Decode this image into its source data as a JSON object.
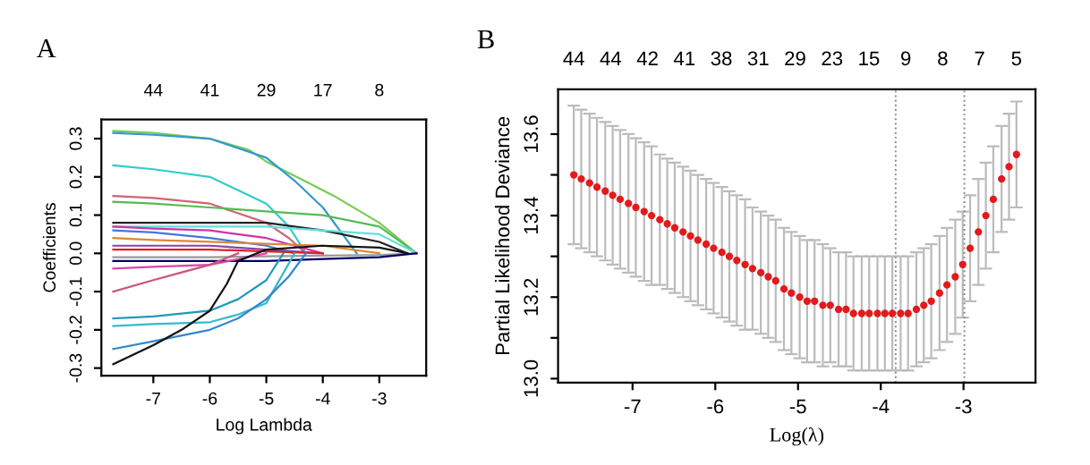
{
  "chart_data": [
    {
      "type": "line",
      "title": "A",
      "xlabel": "Log Lambda",
      "ylabel": "Coefficients",
      "xlim": [
        -7.92,
        -2.17
      ],
      "ylim": [
        -0.32,
        0.35
      ],
      "xticks": [
        -7,
        -6,
        -5,
        -4,
        -3
      ],
      "yticks": [
        -0.3,
        -0.2,
        -0.1,
        {
          "value": 0,
          "label": "0.0"
        },
        0.1,
        0.2,
        0.3
      ],
      "annotations": [
        "44",
        "41",
        "29",
        "17",
        "8"
      ],
      "grid": false,
      "legend": false,
      "marker": "none",
      "line_style": "solid",
      "series": [
        {
          "color": "#77cc55",
          "x": [
            -7.71,
            -7,
            -6,
            -5.3,
            -5,
            -4.2,
            -3.8,
            -3,
            -2.34
          ],
          "values": [
            0.32,
            0.315,
            0.3,
            0.27,
            0.24,
            0.18,
            0.15,
            0.08,
            0.0
          ]
        },
        {
          "color": "#3399cc",
          "x": [
            -7.71,
            -7,
            -6,
            -5,
            -4.5,
            -4,
            -3.4
          ],
          "values": [
            0.315,
            0.31,
            0.3,
            0.25,
            0.19,
            0.12,
            0.0
          ]
        },
        {
          "color": "#33cccc",
          "x": [
            -7.71,
            -7,
            -6,
            -5,
            -4.6,
            -4.3
          ],
          "values": [
            0.23,
            0.22,
            0.2,
            0.13,
            0.07,
            0.0
          ]
        },
        {
          "color": "#cc6677",
          "x": [
            -7.71,
            -7,
            -6,
            -5,
            -4.6,
            -4.3
          ],
          "values": [
            0.15,
            0.145,
            0.13,
            0.08,
            0.04,
            0.0
          ]
        },
        {
          "color": "#55bb55",
          "x": [
            -7.71,
            -7,
            -6,
            -5,
            -4,
            -3,
            -2.34
          ],
          "values": [
            0.135,
            0.13,
            0.12,
            0.11,
            0.1,
            0.07,
            0.0
          ]
        },
        {
          "color": "#222222",
          "x": [
            -7.71,
            -7,
            -6,
            -5,
            -4,
            -3,
            -2.5
          ],
          "values": [
            0.08,
            0.08,
            0.08,
            0.08,
            0.06,
            0.03,
            0.0
          ]
        },
        {
          "color": "#66dddd",
          "x": [
            -7.71,
            -7,
            -6,
            -5,
            -4,
            -3,
            -2.34
          ],
          "values": [
            0.07,
            0.07,
            0.07,
            0.07,
            0.06,
            0.05,
            0.0
          ]
        },
        {
          "color": "#cc33aa",
          "x": [
            -7.71,
            -7,
            -6,
            -5,
            -4.5,
            -4
          ],
          "values": [
            0.07,
            0.065,
            0.06,
            0.04,
            0.02,
            0.0
          ]
        },
        {
          "color": "#4477dd",
          "x": [
            -7.71,
            -7,
            -6,
            -5,
            -4.5
          ],
          "values": [
            0.06,
            0.055,
            0.04,
            0.02,
            0.0
          ]
        },
        {
          "color": "#dd8833",
          "x": [
            -7.71,
            -7,
            -6,
            -5,
            -4,
            -3
          ],
          "values": [
            0.04,
            0.035,
            0.03,
            0.025,
            0.02,
            0.0
          ]
        },
        {
          "color": "#8844aa",
          "x": [
            -7.71,
            -7,
            -6,
            -5,
            -4
          ],
          "values": [
            0.02,
            0.02,
            0.02,
            0.01,
            0.0
          ]
        },
        {
          "color": "#dd2222",
          "x": [
            -7.71,
            -7,
            -6,
            -5,
            -4
          ],
          "values": [
            0.01,
            0.01,
            0.01,
            0.005,
            0.0
          ]
        },
        {
          "color": "#999999",
          "x": [
            -7.71,
            -7,
            -6,
            -5,
            -4,
            -3,
            -2.34
          ],
          "values": [
            -0.01,
            -0.01,
            -0.01,
            -0.008,
            -0.006,
            -0.004,
            0.0
          ]
        },
        {
          "color": "#000066",
          "x": [
            -7.71,
            -7,
            -6,
            -5,
            -4,
            -3,
            -2.34
          ],
          "values": [
            -0.02,
            -0.02,
            -0.02,
            -0.02,
            -0.015,
            -0.01,
            0.0
          ]
        },
        {
          "color": "#dd44aa",
          "x": [
            -7.71,
            -7,
            -6,
            -5.5,
            -5
          ],
          "values": [
            -0.04,
            -0.035,
            -0.03,
            -0.015,
            0.0
          ]
        },
        {
          "color": "#cc5577",
          "x": [
            -7.71,
            -7,
            -6.5,
            -6,
            -5.5
          ],
          "values": [
            -0.1,
            -0.07,
            -0.05,
            -0.03,
            0.0
          ]
        },
        {
          "color": "#2299bb",
          "x": [
            -7.71,
            -7,
            -6,
            -5.5,
            -5,
            -4.7
          ],
          "values": [
            -0.17,
            -0.165,
            -0.15,
            -0.12,
            -0.07,
            0.0
          ]
        },
        {
          "color": "#33bbcc",
          "x": [
            -7.71,
            -7,
            -6,
            -5.5,
            -5,
            -4.5
          ],
          "values": [
            -0.19,
            -0.185,
            -0.18,
            -0.16,
            -0.13,
            0.0
          ]
        },
        {
          "color": "#3388cc",
          "x": [
            -7.71,
            -7,
            -6,
            -5.5,
            -5,
            -4.6,
            -4.3
          ],
          "values": [
            -0.25,
            -0.23,
            -0.2,
            -0.17,
            -0.12,
            -0.06,
            0.0
          ]
        },
        {
          "color": "#111111",
          "x": [
            -7.71,
            -7,
            -6.5,
            -6,
            -5.7,
            -5.5,
            -5,
            -4,
            -3,
            -2.5
          ],
          "values": [
            -0.29,
            -0.24,
            -0.2,
            -0.15,
            -0.08,
            -0.02,
            0.01,
            0.02,
            0.015,
            0.0
          ]
        }
      ]
    },
    {
      "type": "scatter",
      "title": "B",
      "xlabel": "Log(λ)",
      "ylabel": "Partial Likelihood Deviance",
      "xlim": [
        -7.9,
        -2.13
      ],
      "ylim": [
        12.99,
        13.71
      ],
      "xticks": [
        -7,
        -6,
        -5,
        -4,
        -3
      ],
      "yticks": [
        {
          "value": 13,
          "label": "13.0"
        },
        {
          "value": 13.1,
          "label": null
        },
        13.2,
        {
          "value": 13.3,
          "label": null
        },
        13.4,
        {
          "value": 13.5,
          "label": null
        },
        13.6
      ],
      "annotations": [
        "44",
        "44",
        "42",
        "41",
        "38",
        "31",
        "29",
        "23",
        "15",
        "9",
        "8",
        "7",
        "5"
      ],
      "grid": false,
      "legend": false,
      "marker": "circle",
      "ref_lines": [
        {
          "axis": "x",
          "value": -3.82,
          "color": "#888888",
          "line_style": "dotted"
        },
        {
          "axis": "x",
          "value": -2.99,
          "color": "#888888",
          "line_style": "dotted"
        }
      ],
      "series": [
        {
          "color": "#e31a1c",
          "x": [
            -7.71,
            -7.62,
            -7.52,
            -7.43,
            -7.33,
            -7.24,
            -7.15,
            -7.05,
            -6.96,
            -6.86,
            -6.77,
            -6.67,
            -6.58,
            -6.49,
            -6.39,
            -6.3,
            -6.21,
            -6.11,
            -6.02,
            -5.92,
            -5.83,
            -5.74,
            -5.64,
            -5.55,
            -5.45,
            -5.36,
            -5.27,
            -5.17,
            -5.08,
            -4.98,
            -4.89,
            -4.8,
            -4.7,
            -4.61,
            -4.51,
            -4.42,
            -4.33,
            -4.23,
            -4.14,
            -4.04,
            -3.95,
            -3.86,
            -3.76,
            -3.67,
            -3.57,
            -3.48,
            -3.39,
            -3.29,
            -3.2,
            -3.1,
            -3.01,
            -2.92,
            -2.82,
            -2.73,
            -2.64,
            -2.54,
            -2.45,
            -2.36
          ],
          "values": [
            13.5,
            13.49,
            13.48,
            13.47,
            13.46,
            13.45,
            13.44,
            13.43,
            13.42,
            13.41,
            13.4,
            13.39,
            13.38,
            13.37,
            13.36,
            13.35,
            13.34,
            13.33,
            13.32,
            13.31,
            13.3,
            13.29,
            13.28,
            13.27,
            13.26,
            13.25,
            13.24,
            13.22,
            13.21,
            13.2,
            13.19,
            13.19,
            13.18,
            13.18,
            13.17,
            13.17,
            13.16,
            13.16,
            13.16,
            13.16,
            13.16,
            13.16,
            13.16,
            13.16,
            13.17,
            13.18,
            13.19,
            13.21,
            13.23,
            13.25,
            13.28,
            13.32,
            13.36,
            13.4,
            13.44,
            13.49,
            13.52,
            13.55
          ],
          "errors": [
            0.17,
            0.17,
            0.17,
            0.17,
            0.17,
            0.17,
            0.17,
            0.17,
            0.17,
            0.17,
            0.17,
            0.16,
            0.16,
            0.16,
            0.16,
            0.16,
            0.16,
            0.16,
            0.16,
            0.16,
            0.16,
            0.16,
            0.16,
            0.15,
            0.15,
            0.15,
            0.15,
            0.15,
            0.15,
            0.15,
            0.15,
            0.15,
            0.15,
            0.14,
            0.14,
            0.14,
            0.14,
            0.14,
            0.14,
            0.14,
            0.14,
            0.14,
            0.14,
            0.14,
            0.14,
            0.14,
            0.14,
            0.14,
            0.14,
            0.14,
            0.13,
            0.13,
            0.13,
            0.13,
            0.13,
            0.13,
            0.13,
            0.13
          ]
        }
      ]
    }
  ]
}
